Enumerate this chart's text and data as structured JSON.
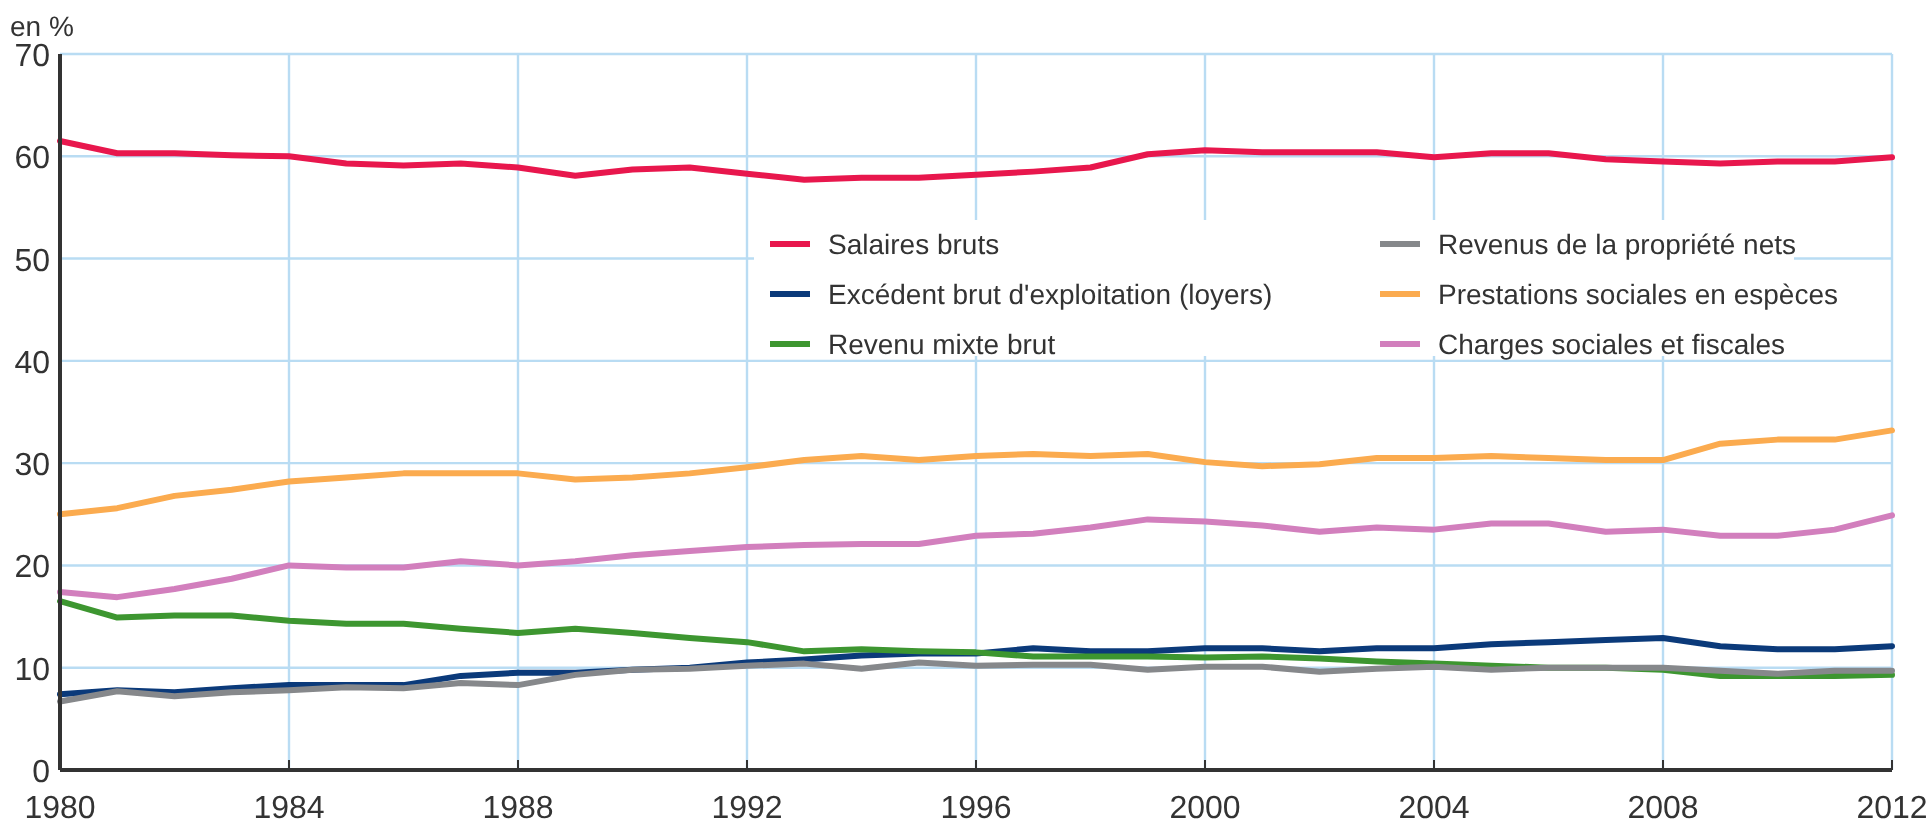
{
  "chart_data": {
    "type": "line",
    "ylabel": "en %",
    "x": [
      1980,
      1981,
      1982,
      1983,
      1984,
      1985,
      1986,
      1987,
      1988,
      1989,
      1990,
      1991,
      1992,
      1993,
      1994,
      1995,
      1996,
      1997,
      1998,
      1999,
      2000,
      2001,
      2002,
      2003,
      2004,
      2005,
      2006,
      2007,
      2008,
      2009,
      2010,
      2011,
      2012
    ],
    "xlim": [
      1980,
      2012
    ],
    "xticks": [
      1980,
      1984,
      1988,
      1992,
      1996,
      2000,
      2004,
      2008,
      2012
    ],
    "ylim": [
      0,
      70
    ],
    "yticks": [
      0,
      10,
      20,
      30,
      40,
      50,
      60,
      70
    ],
    "grid": true,
    "legend": "top right",
    "line_style": "solid",
    "marker": "none",
    "series": [
      {
        "name": "Salaires bruts",
        "color": "#e8174d",
        "values": [
          61.5,
          60.3,
          60.3,
          60.1,
          60.0,
          59.3,
          59.1,
          59.3,
          58.9,
          58.1,
          58.7,
          58.9,
          58.3,
          57.7,
          57.9,
          57.9,
          58.2,
          58.5,
          58.9,
          60.2,
          60.6,
          60.4,
          60.4,
          60.4,
          59.9,
          60.3,
          60.3,
          59.7,
          59.5,
          59.3,
          59.5,
          59.5,
          59.9
        ]
      },
      {
        "name": "Excédent brut d'exploitation (loyers)",
        "color": "#0b3a7a",
        "values": [
          7.4,
          7.8,
          7.6,
          8.0,
          8.3,
          8.3,
          8.3,
          9.2,
          9.5,
          9.5,
          9.8,
          10.0,
          10.5,
          10.8,
          11.2,
          11.4,
          11.4,
          11.9,
          11.6,
          11.6,
          11.9,
          11.9,
          11.6,
          11.9,
          11.9,
          12.3,
          12.5,
          12.7,
          12.9,
          12.1,
          11.8,
          11.8,
          12.1
        ]
      },
      {
        "name": "Revenu mixte brut",
        "color": "#3d9630",
        "values": [
          16.5,
          14.9,
          15.1,
          15.1,
          14.6,
          14.3,
          14.3,
          13.8,
          13.4,
          13.8,
          13.4,
          12.9,
          12.5,
          11.6,
          11.8,
          11.6,
          11.5,
          11.1,
          11.1,
          11.1,
          11.0,
          11.1,
          10.9,
          10.6,
          10.4,
          10.2,
          10.0,
          10.0,
          9.8,
          9.2,
          9.2,
          9.2,
          9.3
        ]
      },
      {
        "name": "Revenus de la propriété nets",
        "color": "#86888b",
        "values": [
          6.7,
          7.7,
          7.2,
          7.6,
          7.8,
          8.1,
          8.0,
          8.5,
          8.3,
          9.3,
          9.8,
          9.9,
          10.2,
          10.4,
          9.9,
          10.5,
          10.2,
          10.3,
          10.3,
          9.8,
          10.1,
          10.1,
          9.6,
          9.9,
          10.1,
          9.8,
          10.0,
          10.0,
          10.0,
          9.7,
          9.4,
          9.7,
          9.7
        ]
      },
      {
        "name": "Prestations sociales en espèces",
        "color": "#fbab4f",
        "values": [
          25.0,
          25.6,
          26.8,
          27.4,
          28.2,
          28.6,
          29.0,
          29.0,
          29.0,
          28.4,
          28.6,
          29.0,
          29.6,
          30.3,
          30.7,
          30.3,
          30.7,
          30.9,
          30.7,
          30.9,
          30.1,
          29.7,
          29.9,
          30.5,
          30.5,
          30.7,
          30.5,
          30.3,
          30.3,
          31.9,
          32.3,
          32.3,
          33.2
        ]
      },
      {
        "name": "Charges sociales et fiscales",
        "color": "#d27fbd",
        "values": [
          17.4,
          16.9,
          17.7,
          18.7,
          20.0,
          19.8,
          19.8,
          20.4,
          20.0,
          20.4,
          21.0,
          21.4,
          21.8,
          22.0,
          22.1,
          22.1,
          22.9,
          23.1,
          23.7,
          24.5,
          24.3,
          23.9,
          23.3,
          23.7,
          23.5,
          24.1,
          24.1,
          23.3,
          23.5,
          22.9,
          22.9,
          23.5,
          24.9
        ]
      }
    ]
  }
}
